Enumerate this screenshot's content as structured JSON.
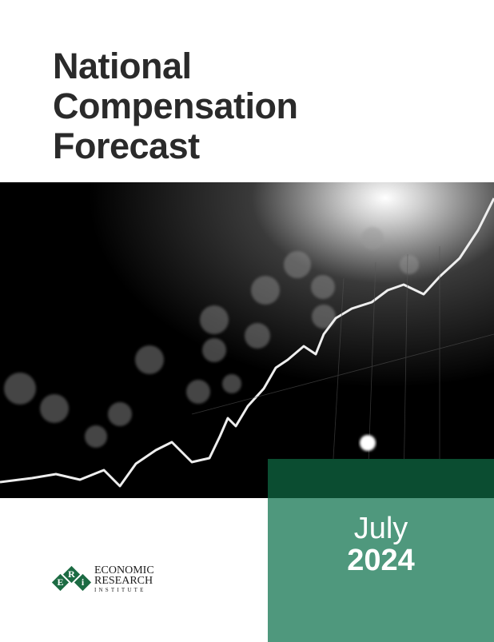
{
  "title": {
    "lines": [
      "National",
      "Compensation",
      "Forecast"
    ]
  },
  "date": {
    "month": "July",
    "year": "2024"
  },
  "logo": {
    "letters": [
      "E",
      "R",
      "i"
    ],
    "name": [
      "ECONOMIC",
      "RESEARCH",
      "INSTITUTE"
    ]
  }
}
